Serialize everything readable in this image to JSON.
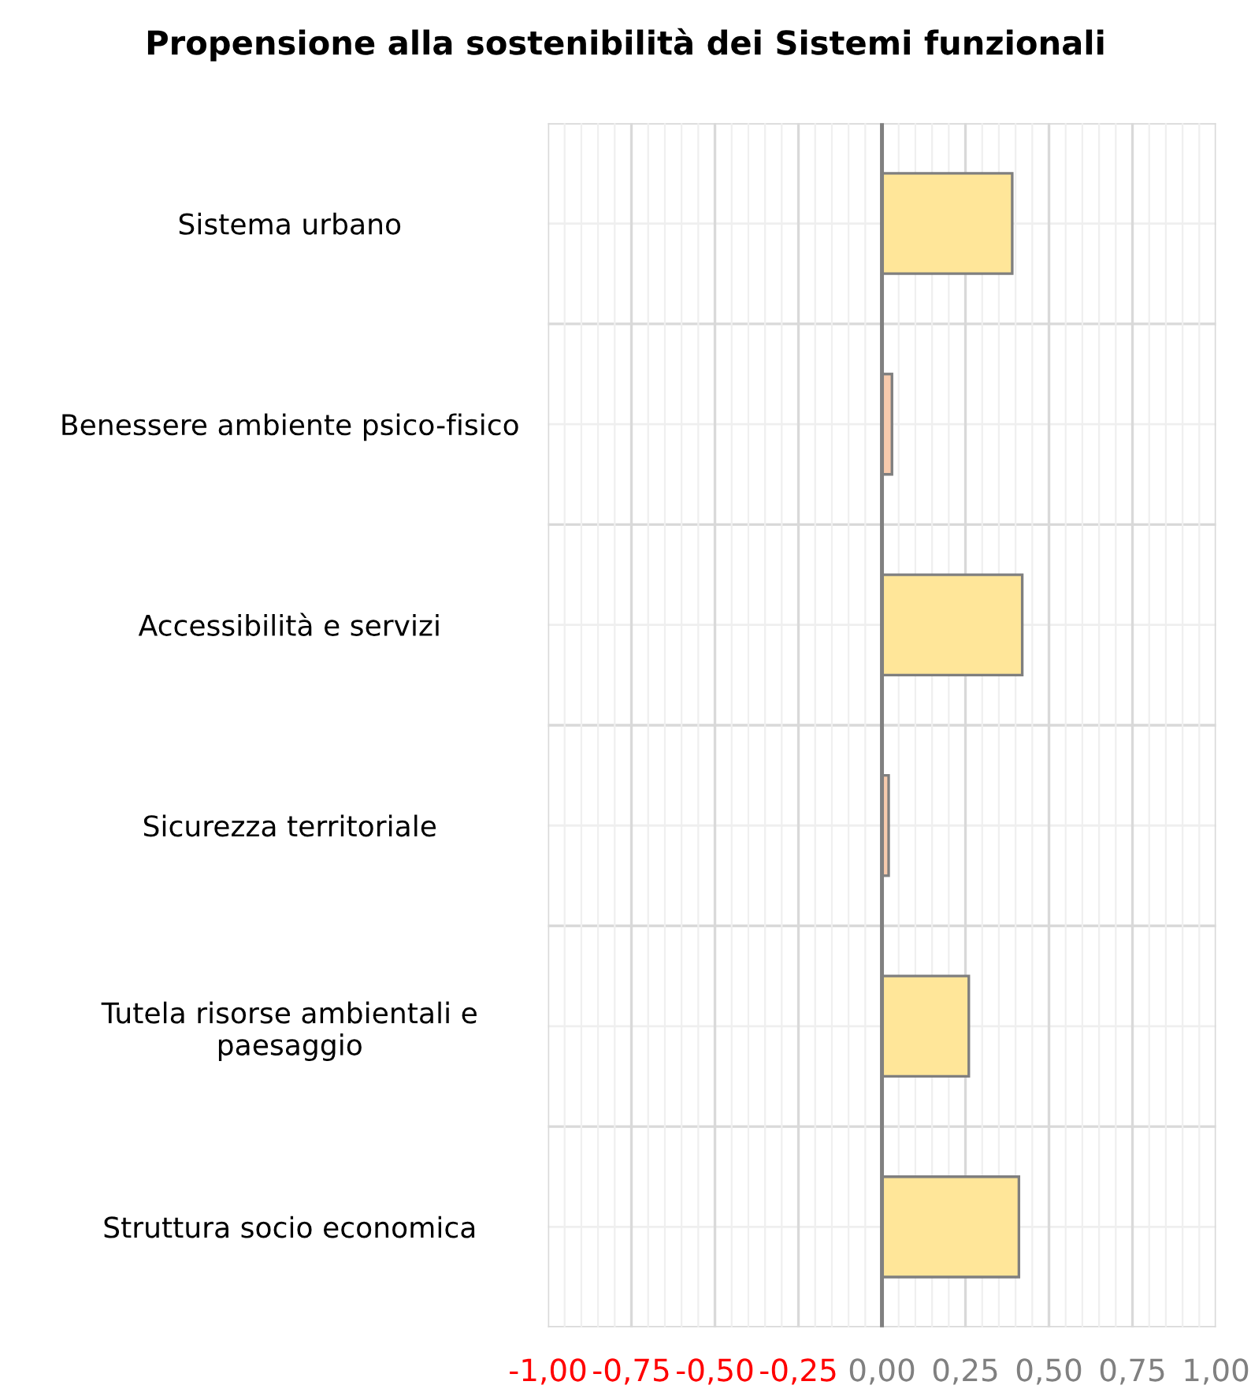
{
  "chart_data": {
    "type": "bar",
    "orientation": "horizontal",
    "title": "Propensione alla sostenibilità dei Sistemi funzionali",
    "categories": [
      "Sistema urbano",
      "Benessere ambiente psico-fisico",
      "Accessibilità e servizi",
      "Sicurezza territoriale",
      "Tutela risorse ambientali e\npaesaggio",
      "Struttura socio economica"
    ],
    "values": [
      0.39,
      0.03,
      0.42,
      0.02,
      0.26,
      0.41
    ],
    "colors": [
      "#ffe699",
      "#f8cbad",
      "#ffe699",
      "#f8cbad",
      "#ffe699",
      "#ffe699"
    ],
    "xlim": [
      -1.0,
      1.0
    ],
    "xticks": [
      {
        "value": -1.0,
        "label": "-1,00"
      },
      {
        "value": -0.75,
        "label": "-0,75"
      },
      {
        "value": -0.5,
        "label": "-0,50"
      },
      {
        "value": -0.25,
        "label": "-0,25"
      },
      {
        "value": 0.0,
        "label": "0,00"
      },
      {
        "value": 0.25,
        "label": "0,25"
      },
      {
        "value": 0.5,
        "label": "0,50"
      },
      {
        "value": 0.75,
        "label": "0,75"
      },
      {
        "value": 1.0,
        "label": "1,00"
      }
    ],
    "grid": true
  }
}
